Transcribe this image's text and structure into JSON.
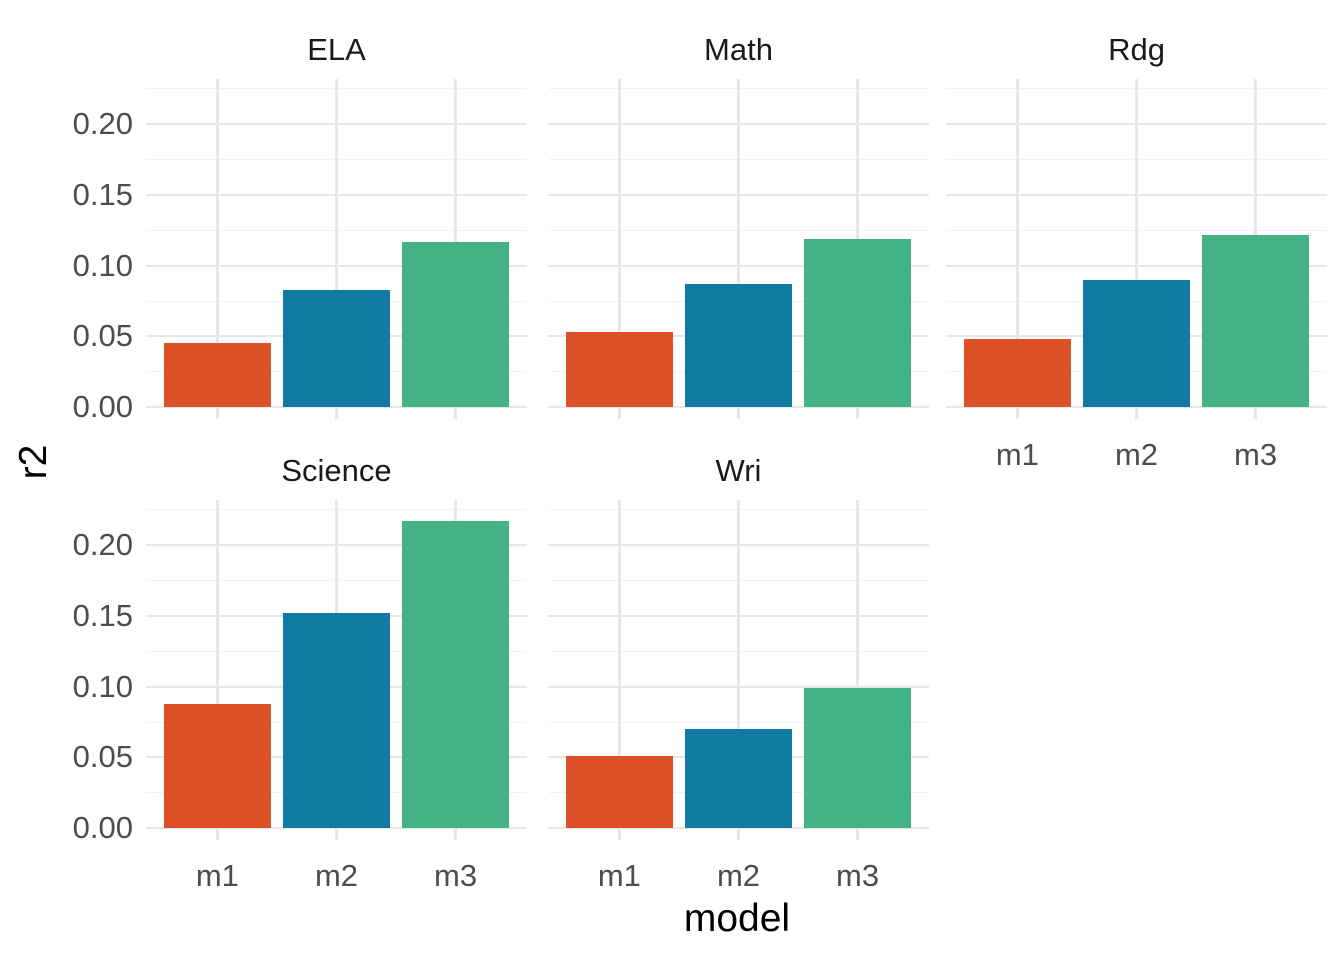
{
  "chart_data": {
    "type": "bar",
    "title": "",
    "xlabel": "model",
    "ylabel": "r2",
    "categories": [
      "m1",
      "m2",
      "m3"
    ],
    "series_colors": [
      "#DD5129",
      "#0F7BA2",
      "#43B284"
    ],
    "y_ticks": [
      "0.00",
      "0.05",
      "0.10",
      "0.15",
      "0.20"
    ],
    "y_tick_values": [
      0,
      0.05,
      0.1,
      0.15,
      0.2
    ],
    "y_minor_tick_values": [
      0.025,
      0.075,
      0.125,
      0.175,
      0.225
    ],
    "ylim": [
      -0.0085,
      0.232
    ],
    "grid": true,
    "legend": "none",
    "facets": [
      {
        "label": "ELA",
        "row": 0,
        "col": 0,
        "values": [
          0.045,
          0.083,
          0.117
        ],
        "x_labels_visible": false
      },
      {
        "label": "Math",
        "row": 0,
        "col": 1,
        "values": [
          0.053,
          0.087,
          0.119
        ],
        "x_labels_visible": false
      },
      {
        "label": "Rdg",
        "row": 0,
        "col": 2,
        "values": [
          0.048,
          0.09,
          0.122
        ],
        "x_labels_visible": true
      },
      {
        "label": "Science",
        "row": 1,
        "col": 0,
        "values": [
          0.088,
          0.152,
          0.217
        ],
        "x_labels_visible": true
      },
      {
        "label": "Wri",
        "row": 1,
        "col": 1,
        "values": [
          0.051,
          0.07,
          0.099
        ],
        "x_labels_visible": true
      }
    ]
  },
  "colors": {
    "background": "#FFFFFF",
    "grid_major": "#E7E7E7",
    "grid_minor": "#F2F2F2",
    "tick_text": "#4D4D4D",
    "strip_text": "#1A1A1A",
    "axis_title_text": "#000000"
  }
}
